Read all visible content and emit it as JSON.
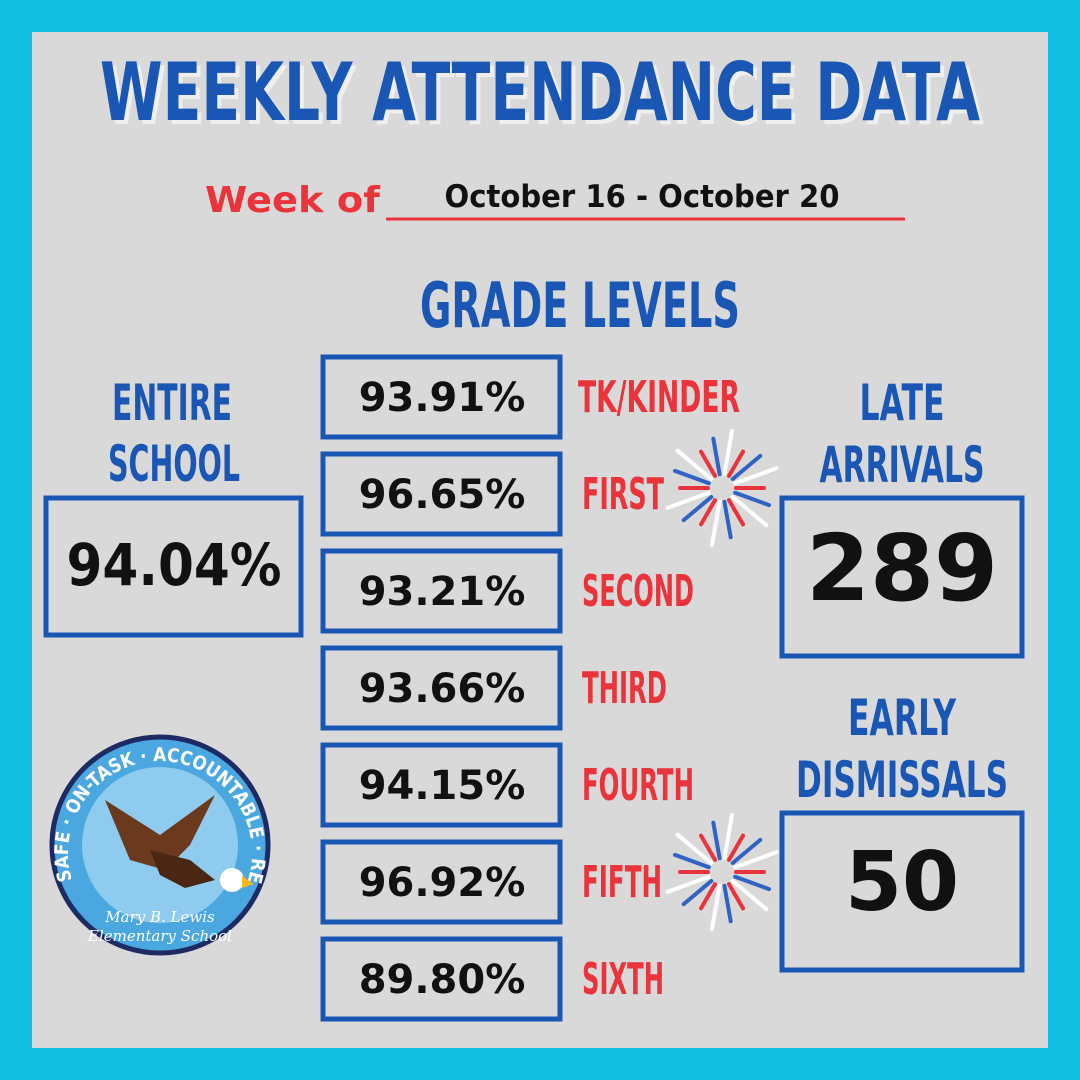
{
  "header": {
    "title": "WEEKLY ATTENDANCE DATA",
    "week_label": "Week of",
    "week": "October 16 - October 20"
  },
  "grade_levels": {
    "heading": "GRADE LEVELS",
    "rows": [
      {
        "value": "93.91%",
        "grade": "TK/KINDER"
      },
      {
        "value": "96.65%",
        "grade": "FIRST"
      },
      {
        "value": "93.21%",
        "grade": "SECOND"
      },
      {
        "value": "93.66%",
        "grade": "THIRD"
      },
      {
        "value": "94.15%",
        "grade": "FOURTH"
      },
      {
        "value": "96.92%",
        "grade": "FIFTH"
      },
      {
        "value": "89.80%",
        "grade": "SIXTH"
      }
    ]
  },
  "entire_school": {
    "heading": [
      "ENTIRE",
      "SCHOOL"
    ],
    "value": "94.04%"
  },
  "late_arrivals": {
    "heading": [
      "LATE",
      "ARRIVALS"
    ],
    "value": "289"
  },
  "early_dismissals": {
    "heading": [
      "EARLY",
      "DISMISSALS"
    ],
    "value": "50"
  },
  "logo": {
    "motto": "SAFE · ON-TASK · ACCOUNTABLE · RESPECTFUL",
    "name": "Mary B. Lewis",
    "school": "Elementary School"
  }
}
